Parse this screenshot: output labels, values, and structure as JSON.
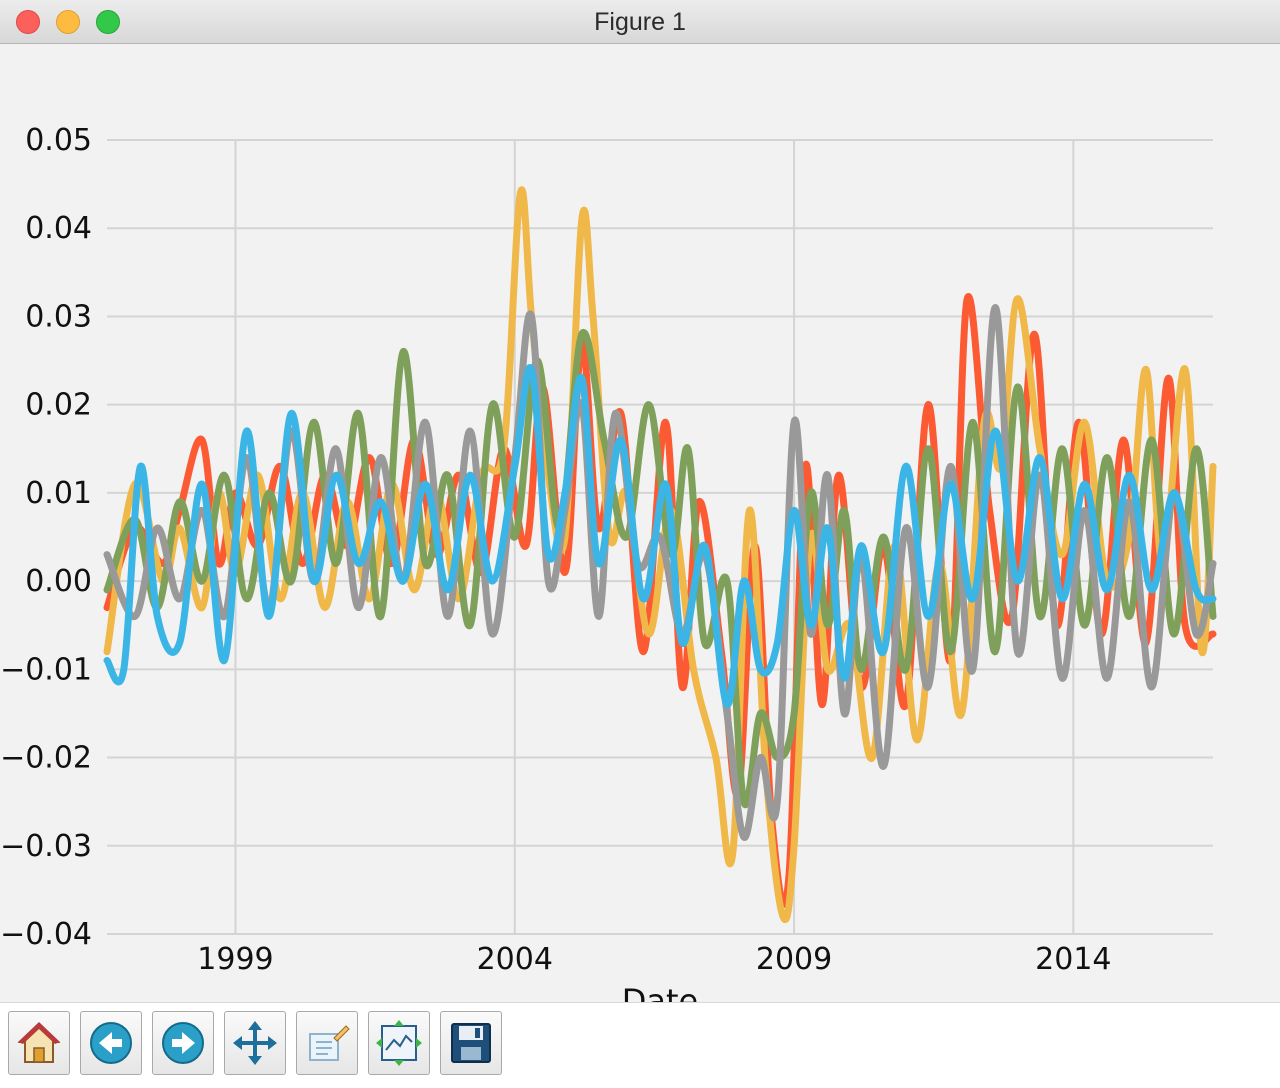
{
  "window": {
    "title": "Figure 1"
  },
  "toolbar": {
    "buttons": [
      {
        "name": "home-button",
        "icon": "home-icon"
      },
      {
        "name": "back-button",
        "icon": "back-arrow-icon"
      },
      {
        "name": "forward-button",
        "icon": "forward-arrow-icon"
      },
      {
        "name": "pan-button",
        "icon": "move-icon"
      },
      {
        "name": "zoom-button",
        "icon": "zoom-rect-icon"
      },
      {
        "name": "subplots-button",
        "icon": "subplots-icon"
      },
      {
        "name": "save-button",
        "icon": "save-icon"
      }
    ]
  },
  "chart_data": {
    "type": "line",
    "title": "",
    "xlabel": "Date",
    "ylabel": "",
    "x_range": [
      1996.7,
      2016.5
    ],
    "ylim": [
      -0.04,
      0.05
    ],
    "grid": true,
    "x_ticks": [
      {
        "value": 1999,
        "label": "1999"
      },
      {
        "value": 2004,
        "label": "2004"
      },
      {
        "value": 2009,
        "label": "2009"
      },
      {
        "value": 2014,
        "label": "2014"
      }
    ],
    "y_ticks": [
      {
        "value": 0.05,
        "label": "0.05"
      },
      {
        "value": 0.04,
        "label": "0.04"
      },
      {
        "value": 0.03,
        "label": "0.03"
      },
      {
        "value": 0.02,
        "label": "0.02"
      },
      {
        "value": 0.01,
        "label": "0.01"
      },
      {
        "value": 0.0,
        "label": "0.00"
      },
      {
        "value": -0.01,
        "label": "−0.01"
      },
      {
        "value": -0.02,
        "label": "−0.02"
      },
      {
        "value": -0.03,
        "label": "−0.03"
      },
      {
        "value": -0.04,
        "label": "−0.04"
      }
    ],
    "series": [
      {
        "name": "series-red",
        "color": "#fc5a32",
        "x": [
          1996.7,
          1997.2,
          1997.7,
          1998.0,
          1998.4,
          1998.7,
          1999.0,
          1999.4,
          1999.8,
          2000.2,
          2000.6,
          2001.0,
          2001.4,
          2001.8,
          2002.2,
          2002.6,
          2003.0,
          2003.4,
          2003.8,
          2004.2,
          2004.5,
          2004.9,
          2005.2,
          2005.5,
          2005.9,
          2006.3,
          2006.7,
          2007.0,
          2007.3,
          2007.7,
          2008.0,
          2008.3,
          2008.6,
          2008.9,
          2009.2,
          2009.5,
          2009.8,
          2010.2,
          2010.6,
          2011.0,
          2011.4,
          2011.8,
          2012.1,
          2012.5,
          2012.9,
          2013.3,
          2013.7,
          2014.1,
          2014.5,
          2014.9,
          2015.3,
          2015.7,
          2016.0,
          2016.5
        ],
        "y": [
          -0.003,
          0.006,
          0.002,
          0.008,
          0.016,
          0.002,
          0.01,
          0.004,
          0.013,
          0.002,
          0.012,
          0.004,
          0.014,
          0.002,
          0.016,
          0.003,
          0.012,
          0.001,
          0.015,
          0.004,
          0.022,
          0.001,
          0.027,
          0.006,
          0.019,
          -0.008,
          0.018,
          -0.012,
          0.009,
          -0.008,
          -0.024,
          0.004,
          -0.027,
          -0.034,
          0.013,
          -0.014,
          0.012,
          -0.012,
          0.004,
          -0.014,
          0.02,
          -0.009,
          0.032,
          0.008,
          -0.004,
          0.028,
          -0.005,
          0.018,
          -0.006,
          0.016,
          -0.007,
          0.023,
          -0.005,
          -0.006
        ]
      },
      {
        "name": "series-yellow",
        "color": "#f0b848",
        "x": [
          1996.7,
          1997.2,
          1997.7,
          1998.0,
          1998.4,
          1998.7,
          1999.0,
          1999.4,
          1999.8,
          2000.2,
          2000.6,
          2001.0,
          2001.4,
          2001.8,
          2002.2,
          2002.6,
          2003.0,
          2003.4,
          2003.8,
          2004.1,
          2004.3,
          2004.6,
          2004.9,
          2005.2,
          2005.4,
          2005.7,
          2006.0,
          2006.4,
          2006.8,
          2007.2,
          2007.6,
          2007.9,
          2008.2,
          2008.5,
          2008.8,
          2009.0,
          2009.3,
          2009.6,
          2010.0,
          2010.4,
          2010.8,
          2011.2,
          2011.6,
          2012.0,
          2012.4,
          2012.7,
          2013.0,
          2013.4,
          2013.8,
          2014.2,
          2014.6,
          2015.0,
          2015.3,
          2015.6,
          2016.0,
          2016.3,
          2016.5
        ],
        "y": [
          -0.008,
          0.011,
          0.0,
          0.006,
          -0.003,
          0.01,
          0.001,
          0.012,
          -0.002,
          0.01,
          -0.003,
          0.009,
          -0.002,
          0.011,
          -0.001,
          0.01,
          -0.002,
          0.012,
          0.015,
          0.044,
          0.03,
          0.012,
          0.005,
          0.041,
          0.03,
          0.005,
          0.01,
          -0.006,
          0.008,
          -0.01,
          -0.02,
          -0.031,
          0.008,
          -0.022,
          -0.038,
          -0.03,
          0.005,
          -0.01,
          -0.005,
          -0.02,
          0.004,
          -0.018,
          0.002,
          -0.015,
          0.018,
          0.013,
          0.032,
          0.015,
          0.003,
          0.018,
          0.0,
          0.005,
          0.024,
          0.002,
          0.024,
          -0.008,
          0.013
        ]
      },
      {
        "name": "series-green",
        "color": "#7fa05a",
        "x": [
          1996.7,
          1997.2,
          1997.6,
          1998.0,
          1998.4,
          1998.8,
          1999.2,
          1999.6,
          2000.0,
          2000.4,
          2000.8,
          2001.2,
          2001.6,
          2002.0,
          2002.4,
          2002.8,
          2003.2,
          2003.6,
          2004.0,
          2004.4,
          2004.8,
          2005.2,
          2005.6,
          2006.0,
          2006.4,
          2006.8,
          2007.1,
          2007.4,
          2007.8,
          2008.1,
          2008.4,
          2008.7,
          2009.0,
          2009.3,
          2009.6,
          2009.9,
          2010.2,
          2010.6,
          2011.0,
          2011.4,
          2011.8,
          2012.2,
          2012.6,
          2013.0,
          2013.4,
          2013.8,
          2014.2,
          2014.6,
          2015.0,
          2015.4,
          2015.8,
          2016.2,
          2016.5
        ],
        "y": [
          -0.001,
          0.007,
          -0.003,
          0.009,
          0.0,
          0.012,
          -0.002,
          0.01,
          0.0,
          0.018,
          0.002,
          0.019,
          -0.004,
          0.026,
          0.002,
          0.012,
          -0.005,
          0.02,
          0.005,
          0.025,
          0.006,
          0.028,
          0.016,
          0.005,
          0.02,
          0.003,
          0.015,
          -0.007,
          0.0,
          -0.025,
          -0.015,
          -0.02,
          -0.015,
          0.01,
          -0.005,
          0.008,
          -0.01,
          0.005,
          -0.01,
          0.015,
          -0.008,
          0.018,
          -0.008,
          0.022,
          -0.004,
          0.015,
          -0.005,
          0.014,
          -0.004,
          0.016,
          -0.006,
          0.015,
          -0.004
        ]
      },
      {
        "name": "series-gray",
        "color": "#999999",
        "x": [
          1996.7,
          1997.2,
          1997.6,
          1998.0,
          1998.4,
          1998.8,
          1999.2,
          1999.6,
          2000.0,
          2000.4,
          2000.8,
          2001.2,
          2001.6,
          2002.0,
          2002.4,
          2002.8,
          2003.2,
          2003.6,
          2004.0,
          2004.3,
          2004.6,
          2004.9,
          2005.2,
          2005.5,
          2005.8,
          2006.2,
          2006.6,
          2007.0,
          2007.4,
          2007.8,
          2008.1,
          2008.4,
          2008.7,
          2009.0,
          2009.3,
          2009.6,
          2009.9,
          2010.2,
          2010.6,
          2011.0,
          2011.4,
          2011.8,
          2012.2,
          2012.6,
          2013.0,
          2013.4,
          2013.8,
          2014.2,
          2014.6,
          2015.0,
          2015.4,
          2015.8,
          2016.2,
          2016.5
        ],
        "y": [
          0.003,
          -0.004,
          0.006,
          -0.002,
          0.008,
          -0.004,
          0.014,
          -0.003,
          0.017,
          0.0,
          0.015,
          -0.003,
          0.014,
          0.0,
          0.018,
          -0.004,
          0.017,
          -0.006,
          0.014,
          0.03,
          0.0,
          0.008,
          0.02,
          -0.004,
          0.019,
          0.002,
          0.005,
          -0.006,
          0.003,
          -0.015,
          -0.029,
          -0.02,
          -0.025,
          0.018,
          -0.006,
          0.012,
          -0.015,
          0.003,
          -0.021,
          0.006,
          -0.012,
          0.013,
          -0.01,
          0.031,
          -0.008,
          0.012,
          -0.011,
          0.008,
          -0.011,
          0.009,
          -0.012,
          0.01,
          -0.006,
          0.002
        ]
      },
      {
        "name": "series-blue",
        "color": "#3ab5e6",
        "x": [
          1996.7,
          1997.0,
          1997.3,
          1997.6,
          1998.0,
          1998.4,
          1998.8,
          1999.2,
          1999.6,
          2000.0,
          2000.4,
          2000.8,
          2001.2,
          2001.6,
          2002.0,
          2002.4,
          2002.8,
          2003.2,
          2003.6,
          2004.0,
          2004.3,
          2004.6,
          2004.9,
          2005.2,
          2005.5,
          2005.9,
          2006.3,
          2006.7,
          2007.0,
          2007.4,
          2007.8,
          2008.1,
          2008.4,
          2008.7,
          2009.0,
          2009.3,
          2009.6,
          2009.9,
          2010.2,
          2010.6,
          2011.0,
          2011.4,
          2011.8,
          2012.2,
          2012.6,
          2013.0,
          2013.4,
          2013.8,
          2014.2,
          2014.6,
          2015.0,
          2015.4,
          2015.8,
          2016.2,
          2016.5
        ],
        "y": [
          -0.009,
          -0.01,
          0.013,
          -0.004,
          -0.007,
          0.011,
          -0.009,
          0.017,
          -0.004,
          0.019,
          0.0,
          0.012,
          0.002,
          0.009,
          0.0,
          0.011,
          -0.001,
          0.012,
          0.0,
          0.013,
          0.024,
          0.003,
          0.01,
          0.023,
          0.002,
          0.016,
          -0.002,
          0.011,
          -0.007,
          0.004,
          -0.014,
          0.0,
          -0.01,
          -0.007,
          0.008,
          -0.005,
          0.006,
          -0.011,
          0.004,
          -0.008,
          0.013,
          -0.004,
          0.011,
          -0.002,
          0.017,
          0.0,
          0.014,
          -0.002,
          0.011,
          -0.001,
          0.012,
          -0.001,
          0.01,
          -0.001,
          -0.002
        ]
      }
    ]
  }
}
